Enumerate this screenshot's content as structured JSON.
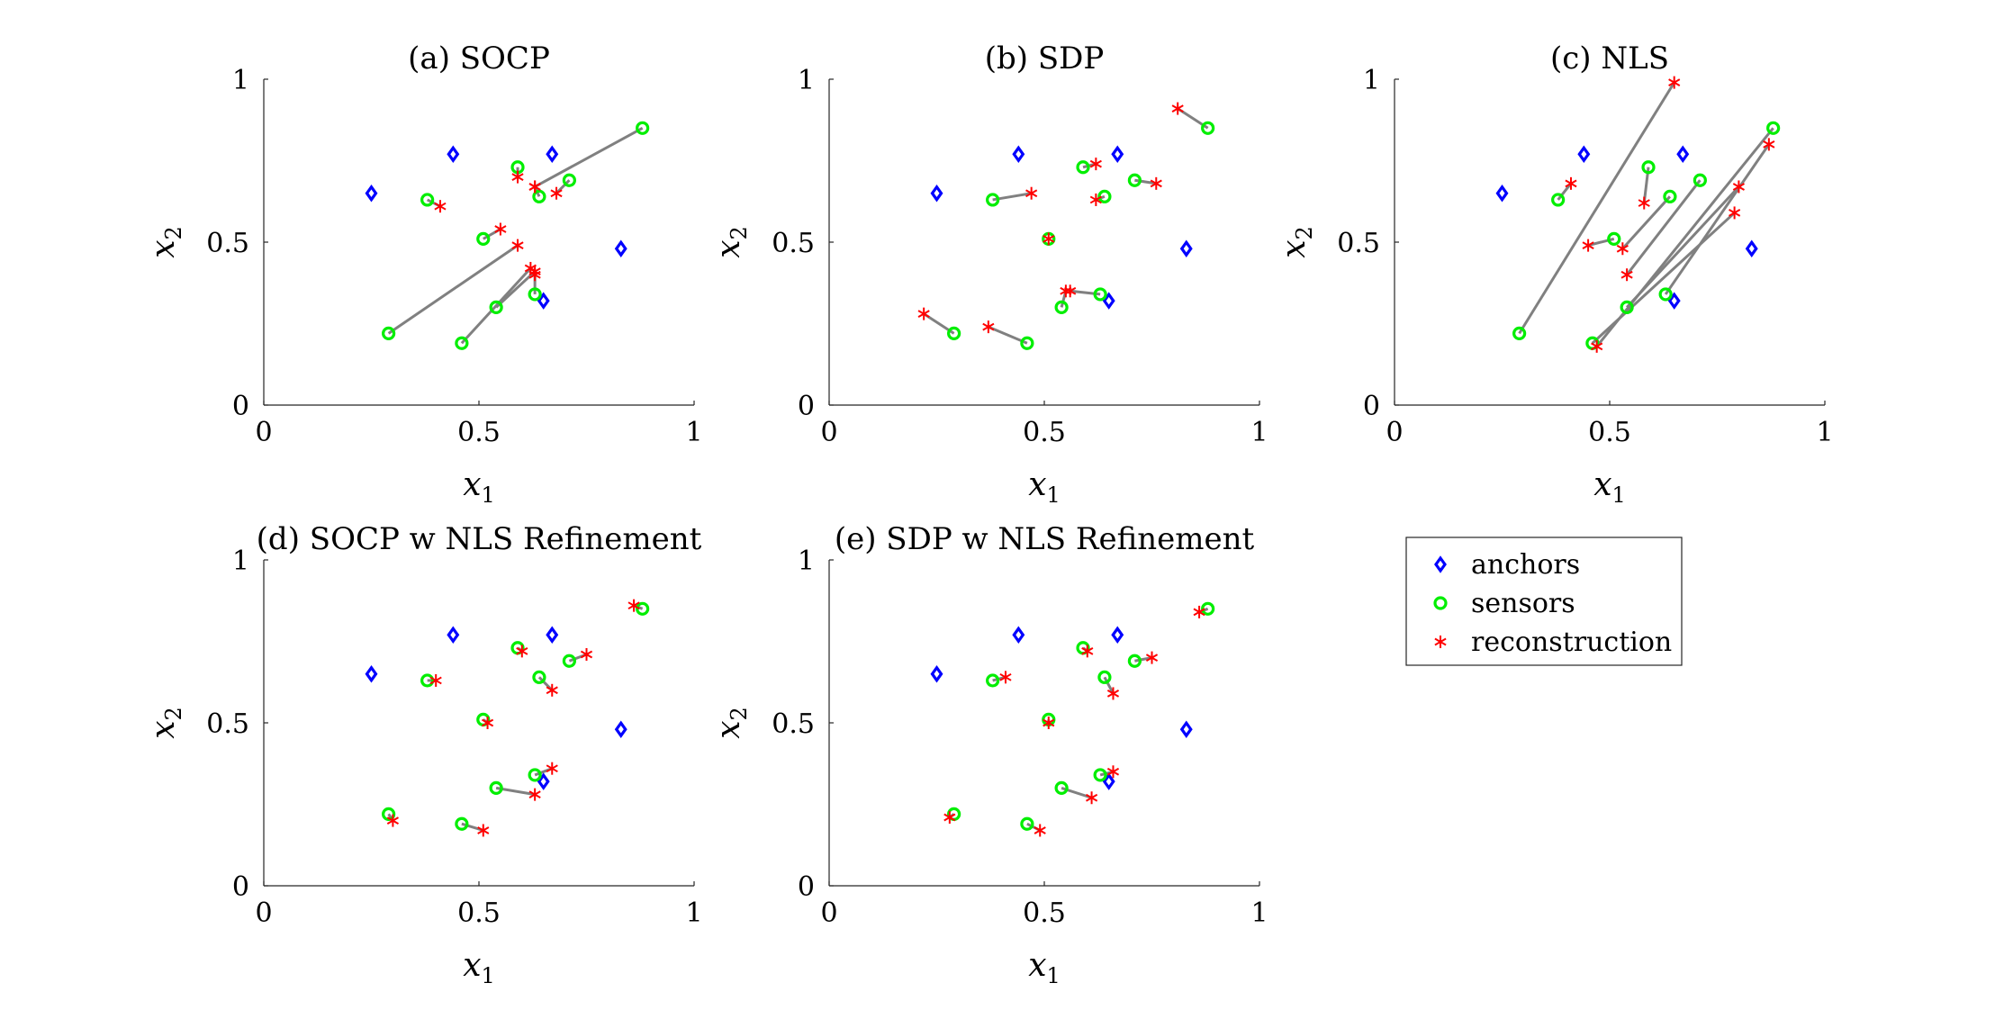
{
  "figure": {
    "legend": {
      "position": "right of (e), row 2",
      "entries": [
        {
          "label": "anchors",
          "marker": "diamond",
          "color": "#0000ff"
        },
        {
          "label": "sensors",
          "marker": "circle",
          "color": "#00ee00"
        },
        {
          "label": "reconstruction",
          "marker": "asterisk",
          "color": "#ff0000"
        }
      ]
    },
    "styles": {
      "anchor_color": "#0000ff",
      "sensor_color": "#00ee00",
      "reconstruction_color": "#ff0000",
      "link_color": "#808080"
    }
  },
  "chart_data": [
    {
      "type": "scatter",
      "title": "(a) SOCP",
      "xlabel": "x1",
      "ylabel": "x2",
      "xlim": [
        0,
        1
      ],
      "ylim": [
        0,
        1
      ],
      "xticks": [
        "0",
        "0.5",
        "1"
      ],
      "yticks": [
        "0",
        "0.5",
        "1"
      ],
      "grid": false,
      "anchors": [
        [
          0.25,
          0.65
        ],
        [
          0.44,
          0.77
        ],
        [
          0.67,
          0.77
        ],
        [
          0.83,
          0.48
        ],
        [
          0.65,
          0.32
        ]
      ],
      "sensors": [
        [
          0.38,
          0.63
        ],
        [
          0.59,
          0.73
        ],
        [
          0.71,
          0.69
        ],
        [
          0.64,
          0.64
        ],
        [
          0.51,
          0.51
        ],
        [
          0.29,
          0.22
        ],
        [
          0.46,
          0.19
        ],
        [
          0.54,
          0.3
        ],
        [
          0.63,
          0.34
        ],
        [
          0.88,
          0.85
        ]
      ],
      "reconstruction": [
        [
          0.41,
          0.61
        ],
        [
          0.59,
          0.7
        ],
        [
          0.68,
          0.65
        ],
        [
          0.63,
          0.67
        ],
        [
          0.55,
          0.54
        ],
        [
          0.59,
          0.49
        ],
        [
          0.62,
          0.42
        ],
        [
          0.63,
          0.41
        ],
        [
          0.63,
          0.4
        ],
        [
          0.63,
          0.67
        ]
      ]
    },
    {
      "type": "scatter",
      "title": "(b) SDP",
      "xlabel": "x1",
      "ylabel": "x2",
      "xlim": [
        0,
        1
      ],
      "ylim": [
        0,
        1
      ],
      "xticks": [
        "0",
        "0.5",
        "1"
      ],
      "yticks": [
        "0",
        "0.5",
        "1"
      ],
      "grid": false,
      "anchors": [
        [
          0.25,
          0.65
        ],
        [
          0.44,
          0.77
        ],
        [
          0.67,
          0.77
        ],
        [
          0.83,
          0.48
        ],
        [
          0.65,
          0.32
        ]
      ],
      "sensors": [
        [
          0.38,
          0.63
        ],
        [
          0.59,
          0.73
        ],
        [
          0.71,
          0.69
        ],
        [
          0.64,
          0.64
        ],
        [
          0.51,
          0.51
        ],
        [
          0.29,
          0.22
        ],
        [
          0.46,
          0.19
        ],
        [
          0.54,
          0.3
        ],
        [
          0.63,
          0.34
        ],
        [
          0.88,
          0.85
        ]
      ],
      "reconstruction": [
        [
          0.47,
          0.65
        ],
        [
          0.62,
          0.74
        ],
        [
          0.76,
          0.68
        ],
        [
          0.62,
          0.63
        ],
        [
          0.51,
          0.51
        ],
        [
          0.22,
          0.28
        ],
        [
          0.37,
          0.24
        ],
        [
          0.55,
          0.35
        ],
        [
          0.56,
          0.35
        ],
        [
          0.81,
          0.91
        ]
      ]
    },
    {
      "type": "scatter",
      "title": "(c) NLS",
      "xlabel": "x1",
      "ylabel": "x2",
      "xlim": [
        0,
        1
      ],
      "ylim": [
        0,
        1
      ],
      "xticks": [
        "0",
        "0.5",
        "1"
      ],
      "yticks": [
        "0",
        "0.5",
        "1"
      ],
      "grid": false,
      "anchors": [
        [
          0.25,
          0.65
        ],
        [
          0.44,
          0.77
        ],
        [
          0.67,
          0.77
        ],
        [
          0.83,
          0.48
        ],
        [
          0.65,
          0.32
        ]
      ],
      "sensors": [
        [
          0.38,
          0.63
        ],
        [
          0.59,
          0.73
        ],
        [
          0.71,
          0.69
        ],
        [
          0.64,
          0.64
        ],
        [
          0.51,
          0.51
        ],
        [
          0.29,
          0.22
        ],
        [
          0.46,
          0.19
        ],
        [
          0.54,
          0.3
        ],
        [
          0.63,
          0.34
        ],
        [
          0.88,
          0.85
        ]
      ],
      "reconstruction": [
        [
          0.41,
          0.68
        ],
        [
          0.58,
          0.62
        ],
        [
          0.54,
          0.4
        ],
        [
          0.53,
          0.48
        ],
        [
          0.45,
          0.49
        ],
        [
          0.65,
          0.99
        ],
        [
          0.79,
          0.59
        ],
        [
          0.8,
          0.67
        ],
        [
          0.87,
          0.8
        ],
        [
          0.47,
          0.18
        ]
      ]
    },
    {
      "type": "scatter",
      "title": "(d) SOCP w NLS Refinement",
      "xlabel": "x1",
      "ylabel": "x2",
      "xlim": [
        0,
        1
      ],
      "ylim": [
        0,
        1
      ],
      "xticks": [
        "0",
        "0.5",
        "1"
      ],
      "yticks": [
        "0",
        "0.5",
        "1"
      ],
      "grid": false,
      "anchors": [
        [
          0.25,
          0.65
        ],
        [
          0.44,
          0.77
        ],
        [
          0.67,
          0.77
        ],
        [
          0.83,
          0.48
        ],
        [
          0.65,
          0.32
        ]
      ],
      "sensors": [
        [
          0.38,
          0.63
        ],
        [
          0.59,
          0.73
        ],
        [
          0.71,
          0.69
        ],
        [
          0.64,
          0.64
        ],
        [
          0.51,
          0.51
        ],
        [
          0.29,
          0.22
        ],
        [
          0.46,
          0.19
        ],
        [
          0.54,
          0.3
        ],
        [
          0.63,
          0.34
        ],
        [
          0.88,
          0.85
        ]
      ],
      "reconstruction": [
        [
          0.4,
          0.63
        ],
        [
          0.6,
          0.72
        ],
        [
          0.75,
          0.71
        ],
        [
          0.67,
          0.6
        ],
        [
          0.52,
          0.5
        ],
        [
          0.3,
          0.2
        ],
        [
          0.51,
          0.17
        ],
        [
          0.63,
          0.28
        ],
        [
          0.67,
          0.36
        ],
        [
          0.86,
          0.86
        ]
      ]
    },
    {
      "type": "scatter",
      "title": "(e) SDP w NLS Refinement",
      "xlabel": "x1",
      "ylabel": "x2",
      "xlim": [
        0,
        1
      ],
      "ylim": [
        0,
        1
      ],
      "xticks": [
        "0",
        "0.5",
        "1"
      ],
      "yticks": [
        "0",
        "0.5",
        "1"
      ],
      "grid": false,
      "anchors": [
        [
          0.25,
          0.65
        ],
        [
          0.44,
          0.77
        ],
        [
          0.67,
          0.77
        ],
        [
          0.83,
          0.48
        ],
        [
          0.65,
          0.32
        ]
      ],
      "sensors": [
        [
          0.38,
          0.63
        ],
        [
          0.59,
          0.73
        ],
        [
          0.71,
          0.69
        ],
        [
          0.64,
          0.64
        ],
        [
          0.51,
          0.51
        ],
        [
          0.29,
          0.22
        ],
        [
          0.46,
          0.19
        ],
        [
          0.54,
          0.3
        ],
        [
          0.63,
          0.34
        ],
        [
          0.88,
          0.85
        ]
      ],
      "reconstruction": [
        [
          0.41,
          0.64
        ],
        [
          0.6,
          0.72
        ],
        [
          0.75,
          0.7
        ],
        [
          0.66,
          0.59
        ],
        [
          0.51,
          0.5
        ],
        [
          0.28,
          0.21
        ],
        [
          0.49,
          0.17
        ],
        [
          0.61,
          0.27
        ],
        [
          0.66,
          0.35
        ],
        [
          0.86,
          0.84
        ]
      ]
    }
  ]
}
